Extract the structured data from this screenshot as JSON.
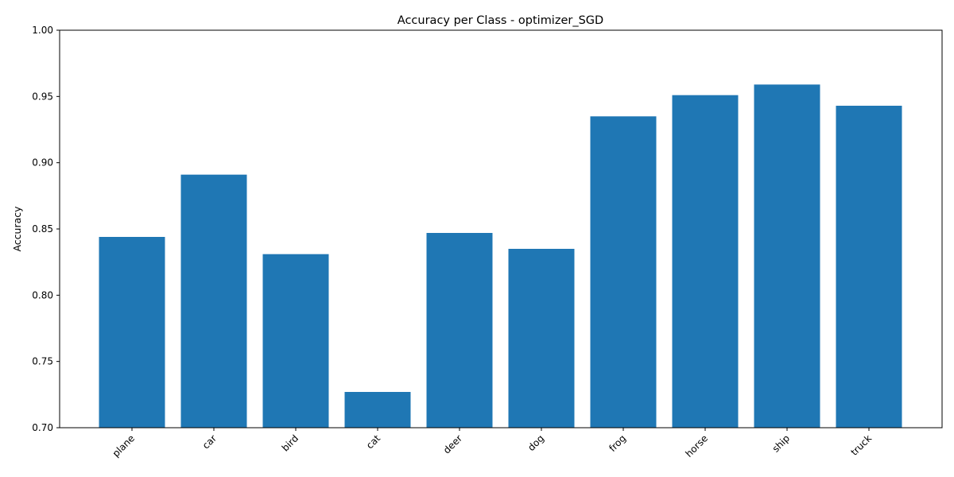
{
  "chart_data": {
    "type": "bar",
    "title": "Accuracy per Class - optimizer_SGD",
    "xlabel": "",
    "ylabel": "Accuracy",
    "categories": [
      "plane",
      "car",
      "bird",
      "cat",
      "deer",
      "dog",
      "frog",
      "horse",
      "ship",
      "truck"
    ],
    "values": [
      0.844,
      0.891,
      0.831,
      0.727,
      0.847,
      0.835,
      0.935,
      0.951,
      0.959,
      0.943
    ],
    "ylim": [
      0.7,
      1.0
    ],
    "yticks": [
      0.7,
      0.75,
      0.8,
      0.85,
      0.9,
      0.95,
      1.0
    ],
    "ytick_labels": [
      "0.70",
      "0.75",
      "0.80",
      "0.85",
      "0.90",
      "0.95",
      "1.00"
    ],
    "grid": false,
    "bar_color": "#1f77b4",
    "xtick_rotation_deg": 45
  }
}
